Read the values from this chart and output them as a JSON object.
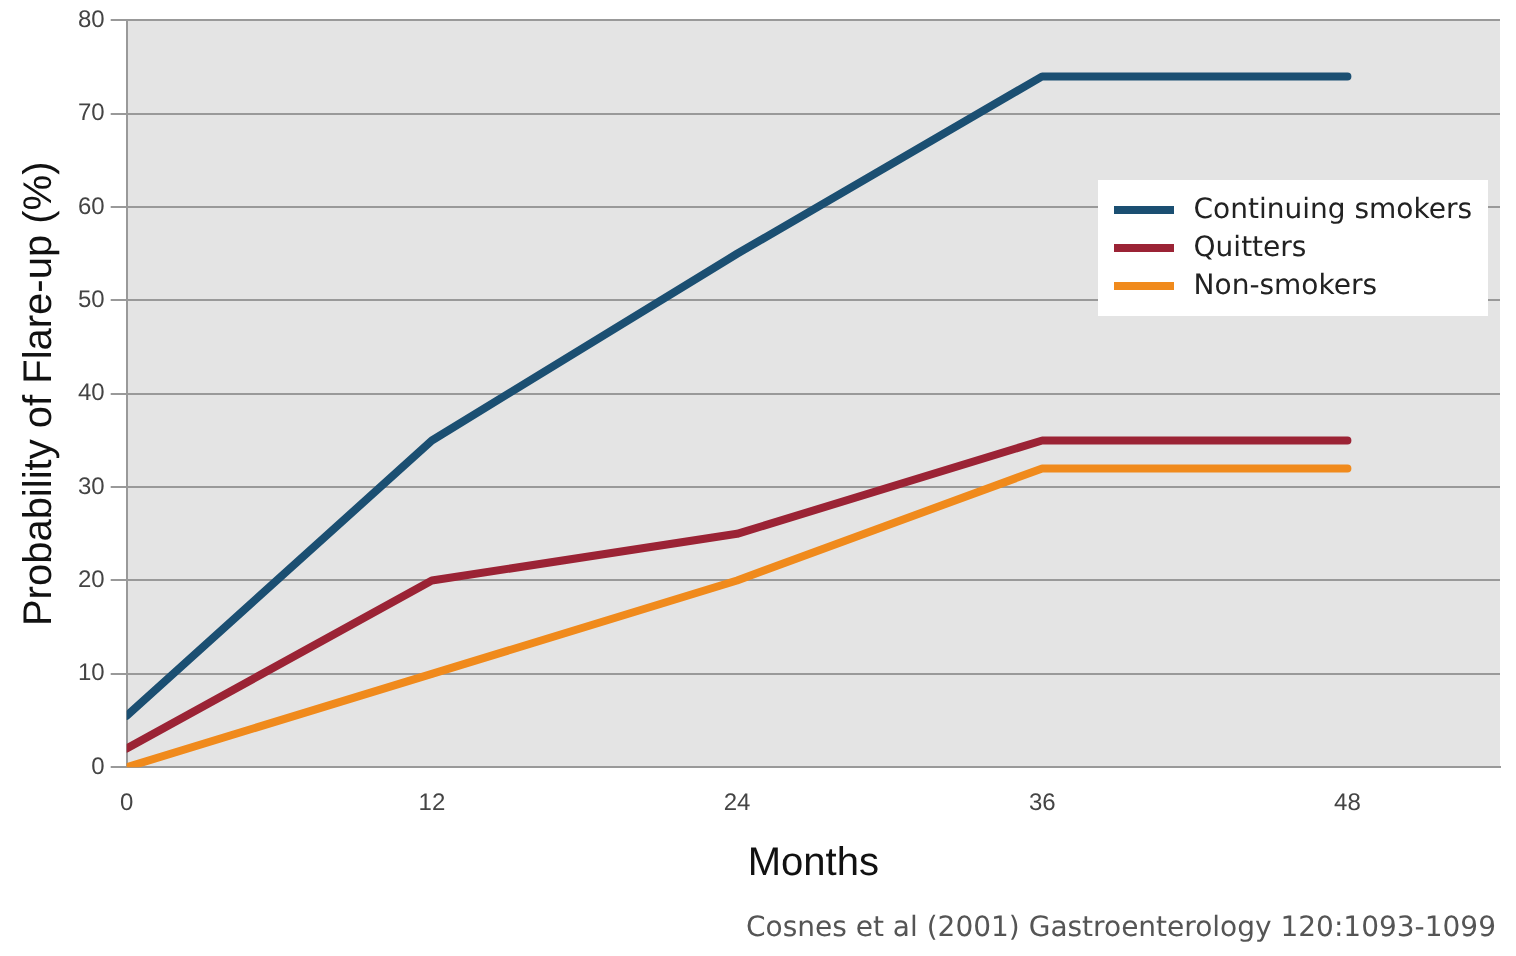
{
  "chart_data": {
    "type": "line",
    "xlabel": "Months",
    "ylabel": "Probability of Flare-up (%)",
    "x": [
      0,
      12,
      24,
      36,
      48
    ],
    "series": [
      {
        "name": "Continuing smokers",
        "color": "#1b4f72",
        "values": [
          5.5,
          35,
          55,
          74,
          74
        ]
      },
      {
        "name": "Quitters",
        "color": "#9b2335",
        "values": [
          2,
          20,
          25,
          35,
          35
        ]
      },
      {
        "name": "Non-smokers",
        "color": "#f08a1c",
        "values": [
          0,
          10,
          20,
          32,
          32
        ]
      }
    ],
    "xlim": [
      0,
      54
    ],
    "xticks": [
      0,
      12,
      24,
      36,
      48
    ],
    "ylim": [
      0,
      80
    ],
    "yticks": [
      0,
      10,
      20,
      30,
      40,
      50,
      60,
      70,
      80
    ],
    "grid": "y",
    "legend": "top right",
    "marker": "none",
    "line_style": "solid",
    "annotations": [
      "Cosnes et al (2001) Gastroenterology 120:1093-1099"
    ]
  }
}
